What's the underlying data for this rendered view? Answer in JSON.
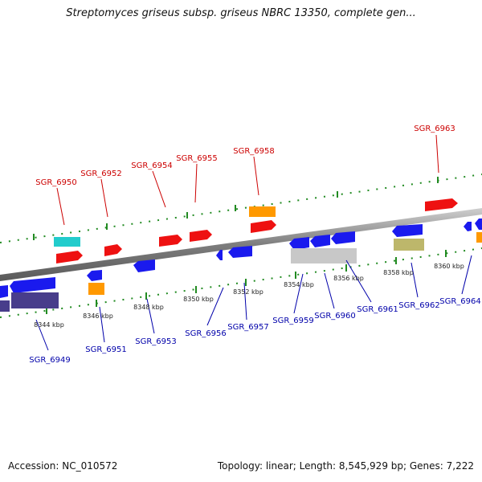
{
  "title": "Streptomyces griseus subsp. griseus NBRC 13350, complete gen...",
  "footer": {
    "accession": "Accession: NC_010572",
    "topology": "Topology: linear; Length: 8,545,929 bp; Genes: 7,222"
  },
  "colors": {
    "forward_label": "#cc0000",
    "reverse_label": "#0000aa",
    "forward_gene": "#ee1111",
    "reverse_gene": "#1a1aee",
    "orange": "#ff9900",
    "cyan": "#22cccc",
    "grey": "#c8c8c8",
    "khaki": "#bdb76b",
    "purple": "#483d8b",
    "tick": "#228b22"
  },
  "scale": {
    "unit": "kbp",
    "ticks": [
      {
        "kbp": 8344,
        "label": "8344 kbp"
      },
      {
        "kbp": 8346,
        "label": "8346 kbp"
      },
      {
        "kbp": 8348,
        "label": "8348 kbp"
      },
      {
        "kbp": 8350,
        "label": "8350 kbp"
      },
      {
        "kbp": 8352,
        "label": "8352 kbp"
      },
      {
        "kbp": 8354,
        "label": "8354 kbp"
      },
      {
        "kbp": 8356,
        "label": "8356 kbp"
      },
      {
        "kbp": 8358,
        "label": "8358 kbp"
      },
      {
        "kbp": 8360,
        "label": "8360 kbp"
      }
    ]
  },
  "genes_forward": [
    {
      "name": "SGR_6950"
    },
    {
      "name": "SGR_6952"
    },
    {
      "name": "SGR_6954"
    },
    {
      "name": "SGR_6955"
    },
    {
      "name": "SGR_6958"
    },
    {
      "name": "SGR_6963"
    }
  ],
  "genes_reverse": [
    {
      "name": "SGR_6949"
    },
    {
      "name": "SGR_6951"
    },
    {
      "name": "SGR_6953"
    },
    {
      "name": "SGR_6956"
    },
    {
      "name": "SGR_6957"
    },
    {
      "name": "SGR_6959"
    },
    {
      "name": "SGR_6960"
    },
    {
      "name": "SGR_6961"
    },
    {
      "name": "SGR_6962"
    },
    {
      "name": "SGR_6964"
    }
  ]
}
